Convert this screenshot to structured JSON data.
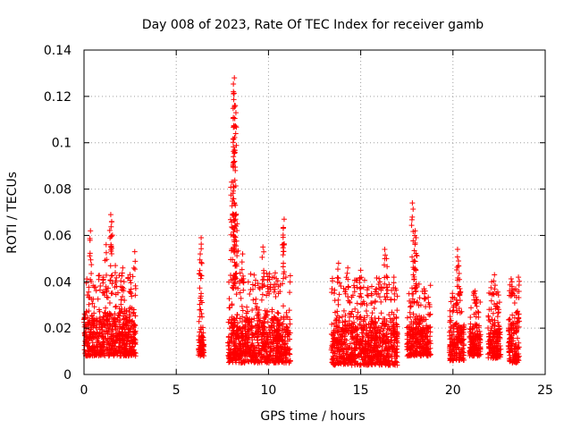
{
  "chart_data": {
    "type": "scatter",
    "title": "Day 008 of 2023, Rate Of TEC Index for receiver gamb",
    "xlabel": "GPS time / hours",
    "ylabel": "ROTI / TECUs",
    "xlim": [
      0,
      25
    ],
    "ylim": [
      0,
      0.14
    ],
    "xticks": [
      0,
      5,
      10,
      15,
      20,
      25
    ],
    "yticks": [
      0,
      0.02,
      0.04,
      0.06,
      0.08,
      0.1,
      0.12,
      0.14
    ],
    "xtick_labels": [
      "0",
      "5",
      "10",
      "15",
      "20",
      "25"
    ],
    "ytick_labels": [
      "0",
      "0.02",
      "0.04",
      "0.06",
      "0.08",
      "0.1",
      "0.12",
      "0.14"
    ],
    "grid": true,
    "marker": "+",
    "series": [
      {
        "name": "ROTI",
        "color": "#ff0000",
        "clusters": [
          {
            "x": [
              0.0,
              2.8
            ],
            "y_base": [
              0.008,
              0.032
            ],
            "peaks": [
              [
                0.35,
                0.062
              ],
              [
                1.2,
                0.056
              ],
              [
                1.45,
                0.069
              ],
              [
                1.5,
                0.066
              ],
              [
                1.7,
                0.047
              ],
              [
                2.1,
                0.046
              ],
              [
                2.75,
                0.053
              ]
            ]
          },
          {
            "x": [
              6.2,
              6.5
            ],
            "y_base": [
              0.008,
              0.022
            ],
            "peaks": [
              [
                6.35,
                0.059
              ],
              [
                6.3,
                0.052
              ]
            ]
          },
          {
            "x": [
              7.8,
              11.2
            ],
            "y_base": [
              0.005,
              0.032
            ],
            "peaks": [
              [
                8.15,
                0.128
              ],
              [
                8.1,
                0.122
              ],
              [
                8.2,
                0.116
              ],
              [
                8.1,
                0.094
              ],
              [
                8.0,
                0.083
              ],
              [
                8.2,
                0.073
              ],
              [
                8.3,
                0.065
              ],
              [
                9.7,
                0.055
              ],
              [
                10.85,
                0.067
              ],
              [
                10.8,
                0.063
              ],
              [
                8.6,
                0.052
              ],
              [
                10.3,
                0.042
              ]
            ]
          },
          {
            "x": [
              13.4,
              17.0
            ],
            "y_base": [
              0.004,
              0.03
            ],
            "peaks": [
              [
                13.8,
                0.048
              ],
              [
                14.3,
                0.046
              ],
              [
                15.0,
                0.045
              ],
              [
                16.3,
                0.054
              ],
              [
                16.4,
                0.05
              ],
              [
                15.6,
                0.038
              ],
              [
                16.8,
                0.042
              ]
            ]
          },
          {
            "x": [
              17.5,
              18.8
            ],
            "y_base": [
              0.008,
              0.028
            ],
            "peaks": [
              [
                17.8,
                0.074
              ],
              [
                17.95,
                0.062
              ],
              [
                18.0,
                0.059
              ],
              [
                17.9,
                0.049
              ],
              [
                18.5,
                0.036
              ]
            ]
          },
          {
            "x": [
              19.8,
              20.6
            ],
            "y_base": [
              0.006,
              0.026
            ],
            "peaks": [
              [
                20.25,
                0.054
              ],
              [
                20.3,
                0.049
              ],
              [
                20.35,
                0.041
              ],
              [
                20.0,
                0.033
              ]
            ]
          },
          {
            "x": [
              20.9,
              21.5
            ],
            "y_base": [
              0.008,
              0.024
            ],
            "peaks": [
              [
                21.2,
                0.036
              ],
              [
                21.3,
                0.032
              ]
            ]
          },
          {
            "x": [
              21.9,
              22.6
            ],
            "y_base": [
              0.007,
              0.026
            ],
            "peaks": [
              [
                22.25,
                0.043
              ],
              [
                22.1,
                0.04
              ],
              [
                22.35,
                0.035
              ]
            ]
          },
          {
            "x": [
              23.0,
              23.6
            ],
            "y_base": [
              0.005,
              0.03
            ],
            "peaks": [
              [
                23.2,
                0.04
              ],
              [
                23.55,
                0.042
              ],
              [
                23.4,
                0.037
              ]
            ]
          }
        ]
      }
    ]
  },
  "colors": {
    "series": "#ff0000",
    "grid": "#a0a0a0",
    "axis": "#000000",
    "background": "#ffffff"
  }
}
